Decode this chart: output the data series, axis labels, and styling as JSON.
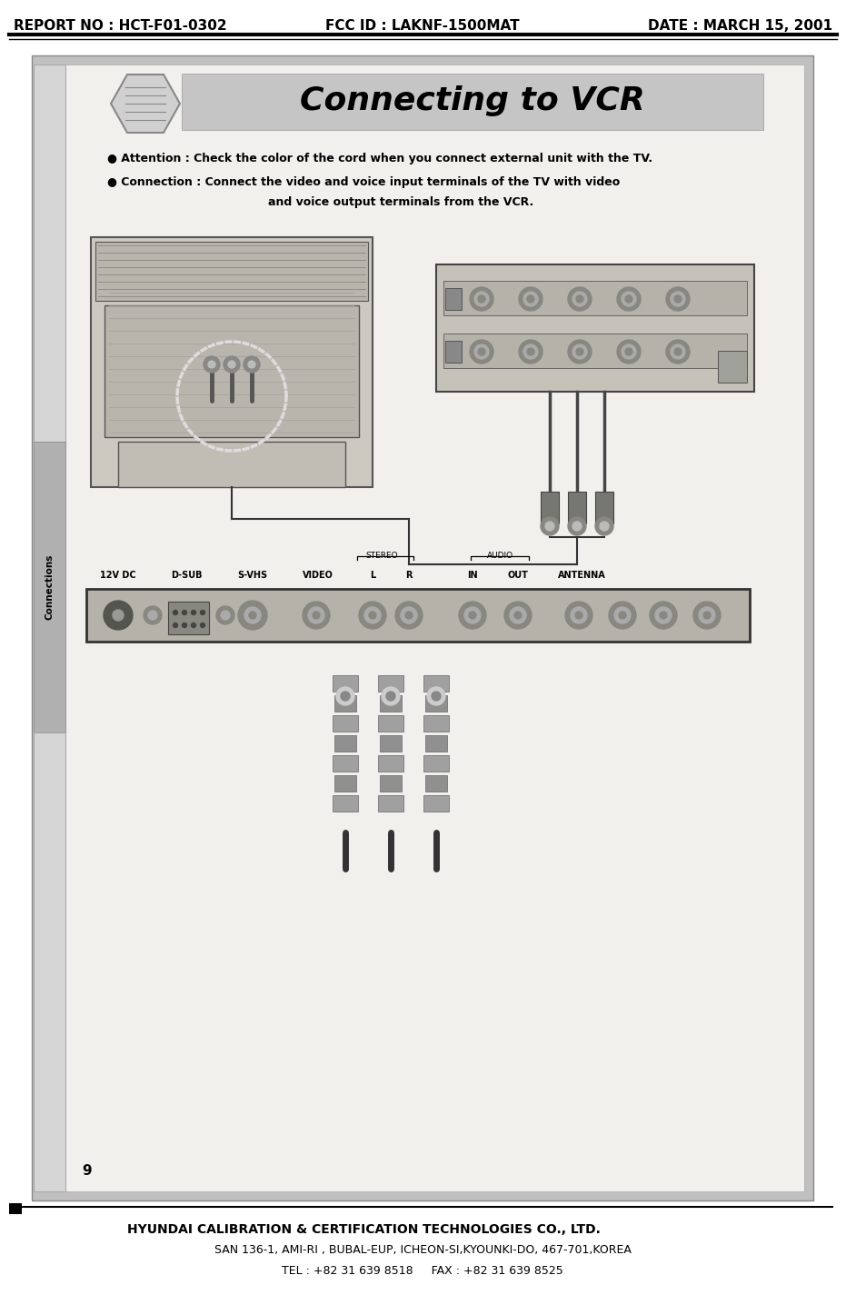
{
  "header_left": "REPORT NO : HCT-F01-0302",
  "header_center": "FCC ID : LAKNF-1500MAT",
  "header_right": "DATE : MARCH 15, 2001",
  "header_font_size": 11,
  "footer_line1a": "HYUNDAI CALIBRATION & CERTIFICATION ",
  "footer_line1b": "TECHNOLOGIES CO., LTD.",
  "footer_line2": "SAN 136-1, AMI-RI , BUBAL-EUP, ICHEON-SI,KYOUNKI-DO, 467-701,KOREA",
  "footer_line3": "TEL : +82 31 639 8518     FAX : +82 31 639 8525",
  "footer_font_size": 10,
  "title_text": "Connecting to VCR",
  "attention_text": "Attention : Check the color of the cord when you connect external unit with the TV.",
  "connection_line1": "Connection : Connect the video and voice input terminals of the TV with video",
  "connection_line2": "and voice output terminals from the VCR.",
  "connections_label": "Connections",
  "page_number": "9"
}
